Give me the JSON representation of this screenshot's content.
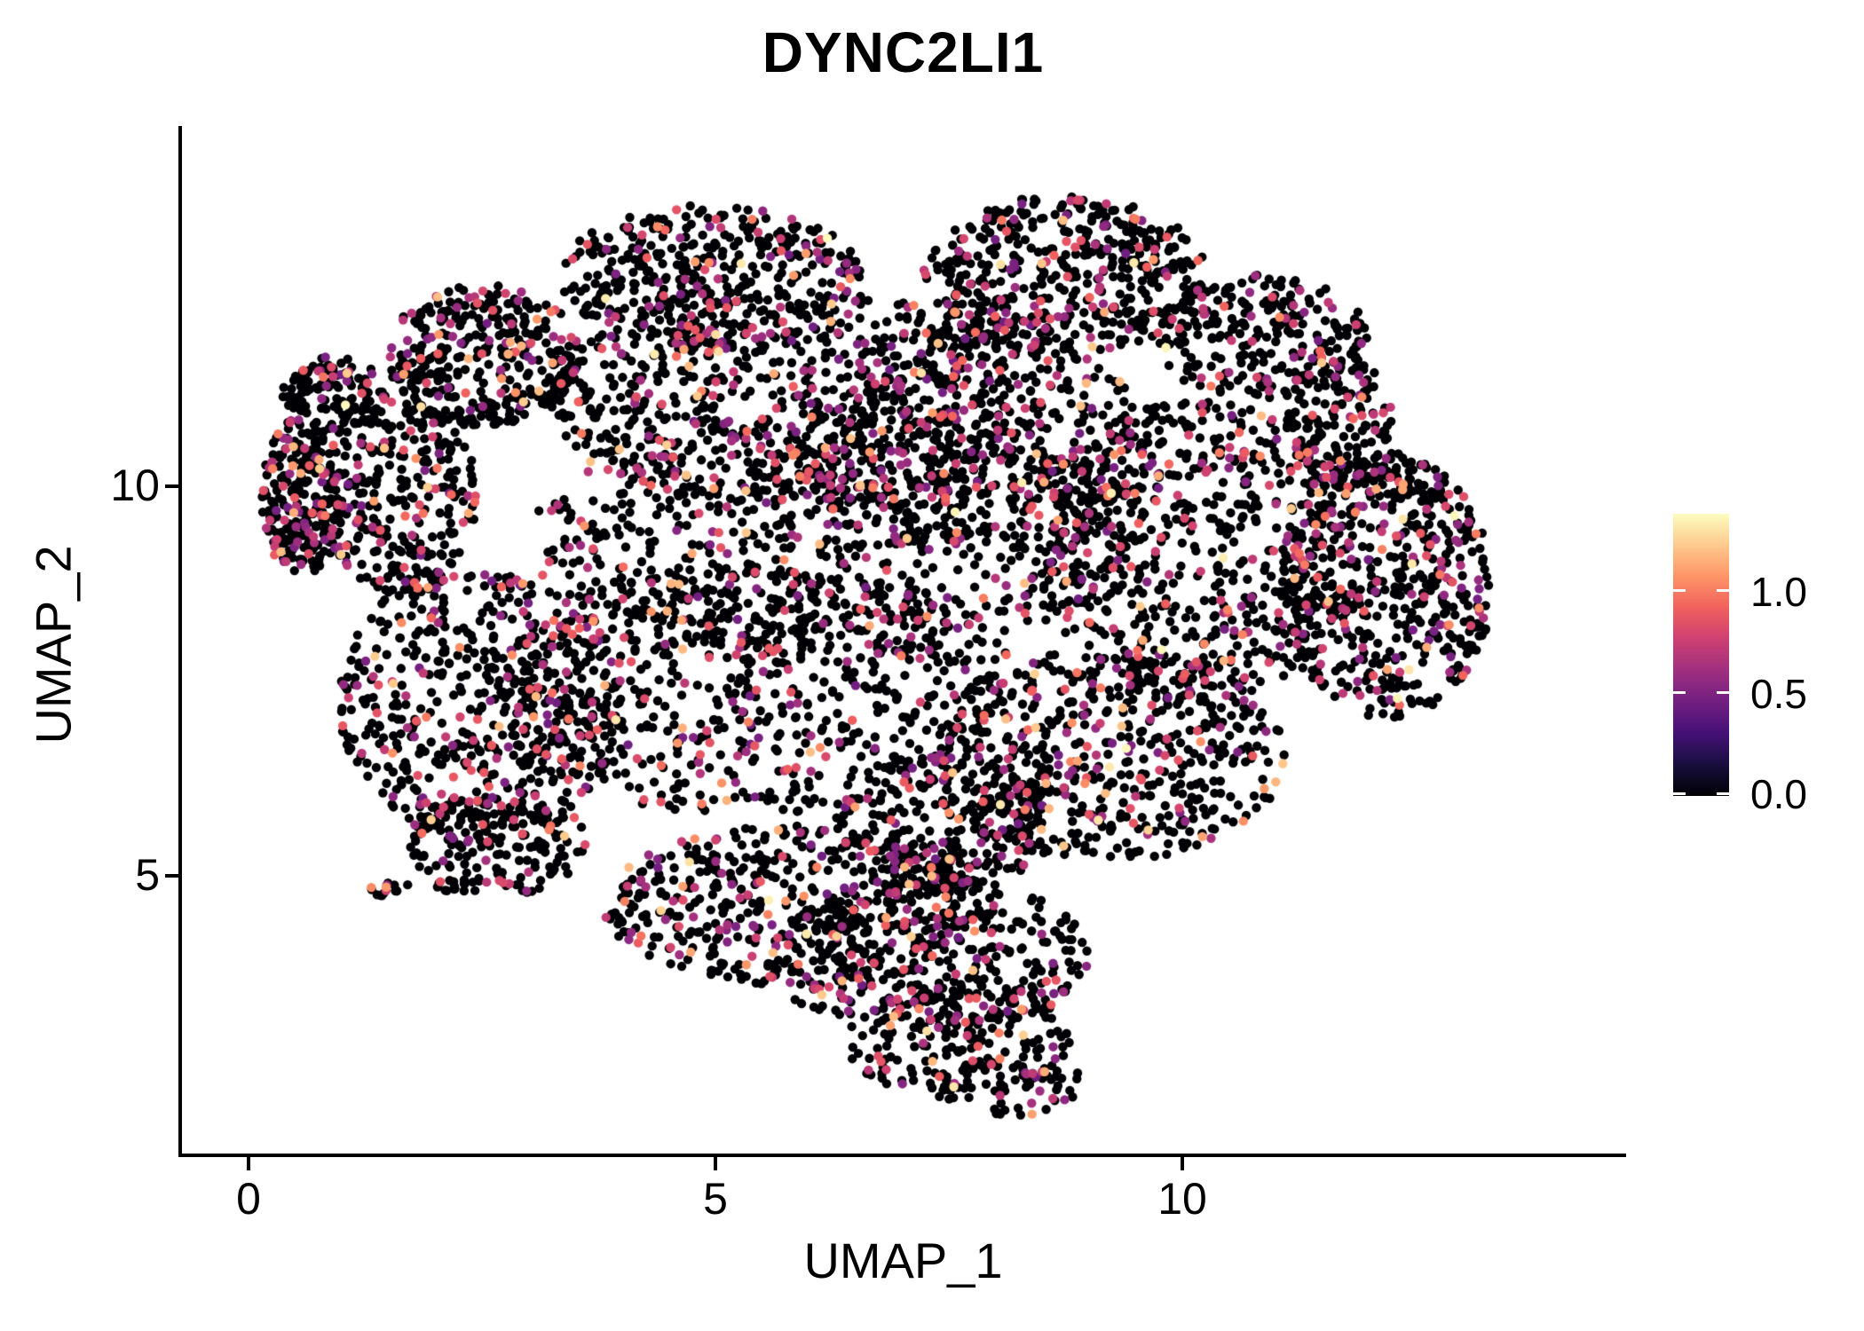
{
  "title": "DYNC2LI1",
  "axes": {
    "x_label": "UMAP_1",
    "y_label": "UMAP_2",
    "x_tick_labels": [
      "0",
      "5",
      "10"
    ],
    "y_tick_labels": [
      "10",
      "5"
    ]
  },
  "legend": {
    "tick_labels": [
      "1.0",
      "0.5",
      "0.0"
    ],
    "tick_values": [
      1.0,
      0.5,
      0.0
    ]
  },
  "chart_data": {
    "type": "scatter",
    "title": "DYNC2LI1",
    "xlabel": "UMAP_1",
    "ylabel": "UMAP_2",
    "x_ticks": [
      0,
      5,
      10
    ],
    "y_ticks": [
      5,
      10
    ],
    "xlim": [
      -0.71,
      14.72
    ],
    "ylim": [
      1.41,
      14.62
    ],
    "grid": false,
    "legend_position": "right",
    "point_radius_px": 5.2,
    "n_points": 8729,
    "seed": 7,
    "colormap": {
      "name": "magma",
      "domain": [
        0,
        1.38
      ],
      "stops": [
        "#000004",
        "#180F3E",
        "#451077",
        "#721F81",
        "#9F2F7F",
        "#CD4071",
        "#F1605D",
        "#FD9567",
        "#FEC98D",
        "#FCFDBF"
      ]
    },
    "expression_model": {
      "frac_zero": 0.8,
      "mid": {
        "frac": 0.16,
        "min": 0.45,
        "max": 0.9
      },
      "high": {
        "frac": 0.035,
        "min": 0.9,
        "max": 1.25
      },
      "top": {
        "frac": 0.005,
        "min": 1.28,
        "max": 1.38
      }
    },
    "clusters": [
      {
        "cx": 2.52,
        "cy": 11.68,
        "rx": 1.04,
        "ry": 0.91,
        "n": 350
      },
      {
        "cx": 4.94,
        "cy": 12.7,
        "rx": 1.61,
        "ry": 0.91,
        "n": 400
      },
      {
        "cx": 8.74,
        "cy": 12.71,
        "rx": 1.52,
        "ry": 1.03,
        "n": 490
      },
      {
        "cx": 10.83,
        "cy": 11.91,
        "rx": 1.14,
        "ry": 0.8,
        "n": 270
      },
      {
        "cx": 11.68,
        "cy": 10.77,
        "rx": 0.57,
        "ry": 0.91,
        "n": 150
      },
      {
        "cx": 12.16,
        "cy": 8.72,
        "rx": 1.14,
        "ry": 1.71,
        "n": 570
      },
      {
        "cx": 10.16,
        "cy": 9.18,
        "rx": 1.71,
        "ry": 1.94,
        "n": 610
      },
      {
        "cx": 5.89,
        "cy": 11.11,
        "rx": 2.66,
        "ry": 1.37,
        "n": 700
      },
      {
        "cx": 6.36,
        "cy": 9.41,
        "rx": 3.32,
        "ry": 1.59,
        "n": 730
      },
      {
        "cx": 5.41,
        "cy": 7.36,
        "rx": 2.85,
        "ry": 1.59,
        "n": 680
      },
      {
        "cx": 0.57,
        "cy": 9.86,
        "rx": 0.43,
        "ry": 1.03,
        "n": 240
      },
      {
        "cx": 0.9,
        "cy": 11.17,
        "rx": 0.57,
        "ry": 0.51,
        "n": 130
      },
      {
        "cx": 1.61,
        "cy": 9.86,
        "rx": 0.85,
        "ry": 1.25,
        "n": 300
      },
      {
        "cx": 2.47,
        "cy": 7.24,
        "rx": 1.52,
        "ry": 1.82,
        "n": 540
      },
      {
        "cx": 2.66,
        "cy": 5.42,
        "rx": 0.95,
        "ry": 0.68,
        "n": 175
      },
      {
        "cx": 1.44,
        "cy": 4.85,
        "rx": 0.17,
        "ry": 0.14,
        "n": 14
      },
      {
        "cx": 2.1,
        "cy": 4.9,
        "rx": 0.55,
        "ry": 0.1,
        "n": 10
      },
      {
        "cx": 7.79,
        "cy": 10.55,
        "rx": 1.9,
        "ry": 1.48,
        "n": 430
      },
      {
        "cx": 9.21,
        "cy": 6.56,
        "rx": 1.9,
        "ry": 1.37,
        "n": 570
      },
      {
        "cx": 7.41,
        "cy": 5.65,
        "rx": 1.14,
        "ry": 0.91,
        "n": 260
      },
      {
        "cx": 5.89,
        "cy": 4.62,
        "rx": 2.09,
        "ry": 1.03,
        "n": 500
      },
      {
        "cx": 7.31,
        "cy": 3.94,
        "rx": 1.71,
        "ry": 1.03,
        "n": 350
      },
      {
        "cx": 7.6,
        "cy": 2.91,
        "rx": 1.23,
        "ry": 0.8,
        "n": 200
      },
      {
        "cx": 8.17,
        "cy": 2.32,
        "rx": 0.76,
        "ry": 0.4,
        "n": 60
      }
    ]
  }
}
